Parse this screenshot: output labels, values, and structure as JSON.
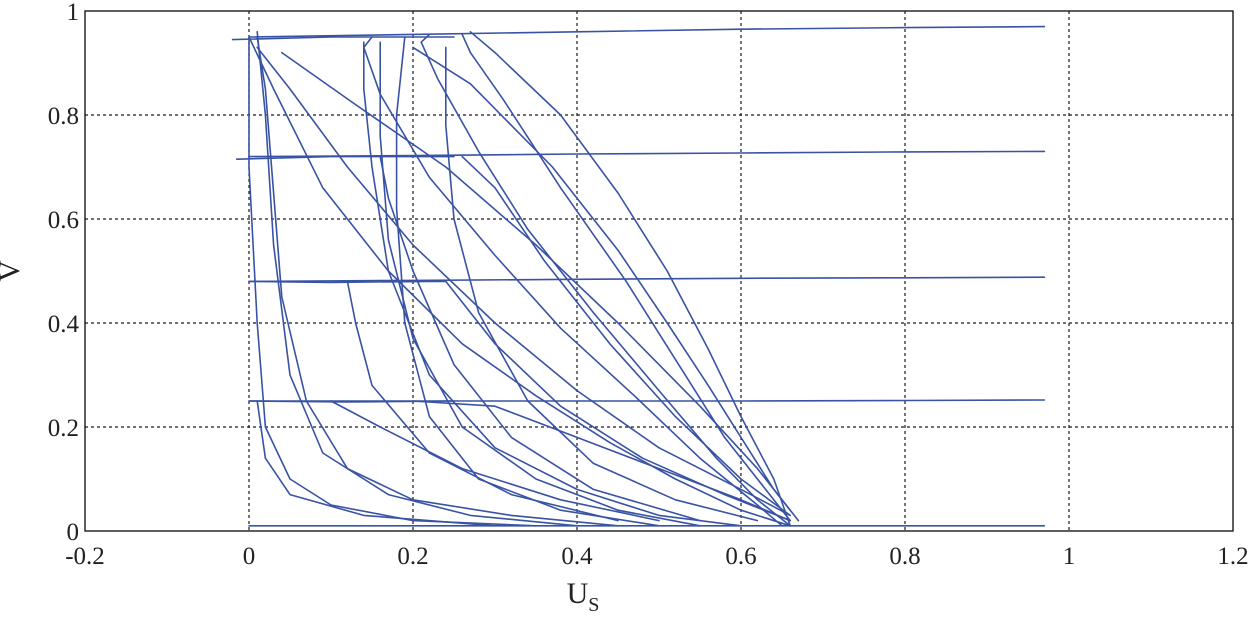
{
  "chart_data": {
    "type": "line",
    "title": "",
    "xlabel": "U",
    "xlabel_subscript": "S",
    "ylabel": "V",
    "xlim": [
      -0.2,
      1.2
    ],
    "ylim": [
      0,
      1
    ],
    "x_ticks": [
      -0.2,
      0,
      0.2,
      0.4,
      0.6,
      0.8,
      1,
      1.2
    ],
    "x_tick_labels": [
      "-0.2",
      "0",
      "0.2",
      "0.4",
      "0.6",
      "0.8",
      "1",
      "1.2"
    ],
    "y_ticks": [
      0,
      0.2,
      0.4,
      0.6,
      0.8,
      1
    ],
    "y_tick_labels": [
      "0",
      "0.2",
      "0.4",
      "0.6",
      "0.8",
      "1"
    ],
    "grid": true,
    "legend": "none",
    "line_color": "#3953A4",
    "series": [
      {
        "values": [
          [
            0.65,
            0.01
          ],
          [
            0.62,
            0.05
          ],
          [
            0.55,
            0.14
          ],
          [
            0.47,
            0.26
          ],
          [
            0.38,
            0.39
          ],
          [
            0.3,
            0.53
          ],
          [
            0.22,
            0.68
          ],
          [
            0.16,
            0.84
          ],
          [
            0.14,
            0.93
          ],
          [
            0.15,
            0.95
          ]
        ]
      },
      {
        "values": [
          [
            0.66,
            0.01
          ],
          [
            0.62,
            0.06
          ],
          [
            0.57,
            0.14
          ],
          [
            0.5,
            0.27
          ],
          [
            0.42,
            0.42
          ],
          [
            0.34,
            0.58
          ],
          [
            0.28,
            0.73
          ],
          [
            0.23,
            0.87
          ],
          [
            0.21,
            0.94
          ],
          [
            0.22,
            0.955
          ]
        ]
      },
      {
        "values": [
          [
            0.66,
            0.02
          ],
          [
            0.63,
            0.08
          ],
          [
            0.58,
            0.18
          ],
          [
            0.52,
            0.33
          ],
          [
            0.46,
            0.48
          ],
          [
            0.38,
            0.66
          ],
          [
            0.31,
            0.83
          ],
          [
            0.27,
            0.92
          ],
          [
            0.26,
            0.955
          ]
        ]
      },
      {
        "values": [
          [
            0.66,
            0.01
          ],
          [
            0.64,
            0.1
          ],
          [
            0.6,
            0.22
          ],
          [
            0.56,
            0.35
          ],
          [
            0.51,
            0.5
          ],
          [
            0.45,
            0.65
          ],
          [
            0.38,
            0.8
          ],
          [
            0.3,
            0.92
          ],
          [
            0.27,
            0.96
          ]
        ]
      },
      {
        "values": [
          [
            0.67,
            0.02
          ],
          [
            0.64,
            0.08
          ],
          [
            0.6,
            0.18
          ],
          [
            0.56,
            0.28
          ],
          [
            0.51,
            0.4
          ],
          [
            0.45,
            0.54
          ],
          [
            0.37,
            0.7
          ],
          [
            0.27,
            0.86
          ],
          [
            0.2,
            0.93
          ]
        ]
      },
      {
        "values": [
          [
            0.6,
            0.01
          ],
          [
            0.5,
            0.03
          ],
          [
            0.4,
            0.08
          ],
          [
            0.3,
            0.16
          ],
          [
            0.22,
            0.3
          ],
          [
            0.17,
            0.5
          ],
          [
            0.15,
            0.7
          ],
          [
            0.14,
            0.85
          ],
          [
            0.14,
            0.94
          ]
        ]
      },
      {
        "values": [
          [
            0.55,
            0.01
          ],
          [
            0.45,
            0.04
          ],
          [
            0.35,
            0.1
          ],
          [
            0.26,
            0.2
          ],
          [
            0.2,
            0.37
          ],
          [
            0.17,
            0.56
          ],
          [
            0.16,
            0.76
          ],
          [
            0.16,
            0.94
          ]
        ]
      },
      {
        "values": [
          [
            0.5,
            0.01
          ],
          [
            0.38,
            0.04
          ],
          [
            0.28,
            0.1
          ],
          [
            0.22,
            0.22
          ],
          [
            0.19,
            0.4
          ],
          [
            0.18,
            0.62
          ],
          [
            0.18,
            0.8
          ],
          [
            0.19,
            0.95
          ]
        ]
      },
      {
        "values": [
          [
            0.62,
            0.02
          ],
          [
            0.52,
            0.06
          ],
          [
            0.42,
            0.13
          ],
          [
            0.34,
            0.25
          ],
          [
            0.28,
            0.42
          ],
          [
            0.25,
            0.6
          ],
          [
            0.24,
            0.78
          ],
          [
            0.24,
            0.93
          ]
        ]
      },
      {
        "values": [
          [
            0.45,
            0.01
          ],
          [
            0.32,
            0.03
          ],
          [
            0.2,
            0.06
          ],
          [
            0.12,
            0.12
          ],
          [
            0.07,
            0.25
          ],
          [
            0.04,
            0.45
          ],
          [
            0.03,
            0.65
          ],
          [
            0.02,
            0.85
          ],
          [
            0.01,
            0.95
          ]
        ]
      },
      {
        "values": [
          [
            0.4,
            0.01
          ],
          [
            0.27,
            0.03
          ],
          [
            0.17,
            0.07
          ],
          [
            0.09,
            0.15
          ],
          [
            0.05,
            0.3
          ],
          [
            0.03,
            0.55
          ],
          [
            0.02,
            0.8
          ],
          [
            0.01,
            0.96
          ]
        ]
      },
      {
        "values": [
          [
            0.35,
            0.01
          ],
          [
            0.2,
            0.02
          ],
          [
            0.1,
            0.05
          ],
          [
            0.05,
            0.1
          ],
          [
            0.02,
            0.2
          ],
          [
            0.01,
            0.4
          ],
          [
            0.0,
            0.7
          ],
          [
            0.0,
            0.95
          ]
        ]
      },
      {
        "values": [
          [
            0.66,
            0.03
          ],
          [
            0.6,
            0.08
          ],
          [
            0.5,
            0.16
          ],
          [
            0.4,
            0.27
          ],
          [
            0.3,
            0.4
          ],
          [
            0.2,
            0.55
          ],
          [
            0.12,
            0.7
          ],
          [
            0.05,
            0.85
          ],
          [
            0.01,
            0.93
          ]
        ]
      },
      {
        "values": [
          [
            0.66,
            0.04
          ],
          [
            0.62,
            0.12
          ],
          [
            0.55,
            0.24
          ],
          [
            0.45,
            0.4
          ],
          [
            0.35,
            0.55
          ],
          [
            0.24,
            0.7
          ],
          [
            0.13,
            0.82
          ],
          [
            0.04,
            0.92
          ]
        ]
      },
      {
        "values": [
          [
            0.66,
            0.01
          ],
          [
            0.6,
            0.04
          ],
          [
            0.52,
            0.1
          ],
          [
            0.44,
            0.17
          ],
          [
            0.35,
            0.26
          ],
          [
            0.26,
            0.36
          ],
          [
            0.17,
            0.5
          ],
          [
            0.09,
            0.66
          ],
          [
            0.03,
            0.85
          ],
          [
            0.0,
            0.95
          ]
        ]
      },
      {
        "values": [
          [
            0.66,
            0.02
          ],
          [
            0.6,
            0.06
          ],
          [
            0.5,
            0.12
          ],
          [
            0.4,
            0.18
          ],
          [
            0.3,
            0.24
          ],
          [
            0.2,
            0.25
          ]
        ]
      },
      {
        "values": [
          [
            0.66,
            0.02
          ],
          [
            0.58,
            0.07
          ],
          [
            0.48,
            0.14
          ],
          [
            0.38,
            0.24
          ],
          [
            0.3,
            0.36
          ],
          [
            0.24,
            0.48
          ],
          [
            0.22,
            0.48
          ]
        ]
      },
      {
        "values": [
          [
            0.66,
            0.03
          ],
          [
            0.6,
            0.1
          ],
          [
            0.52,
            0.22
          ],
          [
            0.44,
            0.36
          ],
          [
            0.36,
            0.52
          ],
          [
            0.3,
            0.66
          ],
          [
            0.26,
            0.72
          ]
        ]
      },
      {
        "values": [
          [
            0.5,
            0.02
          ],
          [
            0.38,
            0.06
          ],
          [
            0.26,
            0.12
          ],
          [
            0.16,
            0.2
          ],
          [
            0.1,
            0.25
          ]
        ]
      },
      {
        "values": [
          [
            0.45,
            0.02
          ],
          [
            0.32,
            0.07
          ],
          [
            0.22,
            0.15
          ],
          [
            0.15,
            0.28
          ],
          [
            0.13,
            0.4
          ],
          [
            0.12,
            0.48
          ]
        ]
      },
      {
        "values": [
          [
            0.55,
            0.02
          ],
          [
            0.42,
            0.08
          ],
          [
            0.32,
            0.18
          ],
          [
            0.25,
            0.32
          ],
          [
            0.2,
            0.5
          ],
          [
            0.17,
            0.64
          ],
          [
            0.16,
            0.72
          ]
        ]
      },
      {
        "values": [
          [
            0.3,
            0.01
          ],
          [
            0.14,
            0.03
          ],
          [
            0.05,
            0.07
          ],
          [
            0.02,
            0.14
          ],
          [
            0.01,
            0.25
          ]
        ]
      },
      {
        "values": [
          [
            0.0,
            0.95
          ],
          [
            0.2,
            0.955
          ],
          [
            0.4,
            0.96
          ],
          [
            0.6,
            0.965
          ],
          [
            0.8,
            0.968
          ],
          [
            0.97,
            0.97
          ]
        ]
      },
      {
        "values": [
          [
            0.0,
            0.72
          ],
          [
            0.2,
            0.722
          ],
          [
            0.4,
            0.725
          ],
          [
            0.6,
            0.727
          ],
          [
            0.8,
            0.729
          ],
          [
            0.97,
            0.73
          ]
        ]
      },
      {
        "values": [
          [
            0.0,
            0.48
          ],
          [
            0.2,
            0.482
          ],
          [
            0.4,
            0.484
          ],
          [
            0.6,
            0.486
          ],
          [
            0.8,
            0.487
          ],
          [
            0.97,
            0.488
          ]
        ]
      },
      {
        "values": [
          [
            0.0,
            0.25
          ],
          [
            0.2,
            0.25
          ],
          [
            0.4,
            0.25
          ],
          [
            0.6,
            0.25
          ],
          [
            0.8,
            0.251
          ],
          [
            0.97,
            0.252
          ]
        ]
      },
      {
        "values": [
          [
            0.0,
            0.01
          ],
          [
            0.3,
            0.01
          ],
          [
            0.6,
            0.01
          ],
          [
            0.8,
            0.01
          ],
          [
            0.97,
            0.01
          ]
        ]
      },
      {
        "values": [
          [
            -0.02,
            0.945
          ],
          [
            0.1,
            0.95
          ],
          [
            0.25,
            0.95
          ]
        ]
      },
      {
        "values": [
          [
            -0.015,
            0.715
          ],
          [
            0.1,
            0.72
          ],
          [
            0.25,
            0.72
          ]
        ]
      },
      {
        "values": [
          [
            0.0,
            0.48
          ],
          [
            0.1,
            0.478
          ],
          [
            0.22,
            0.48
          ]
        ]
      },
      {
        "values": [
          [
            0.0,
            0.25
          ],
          [
            0.12,
            0.248
          ],
          [
            0.25,
            0.25
          ]
        ]
      }
    ]
  }
}
